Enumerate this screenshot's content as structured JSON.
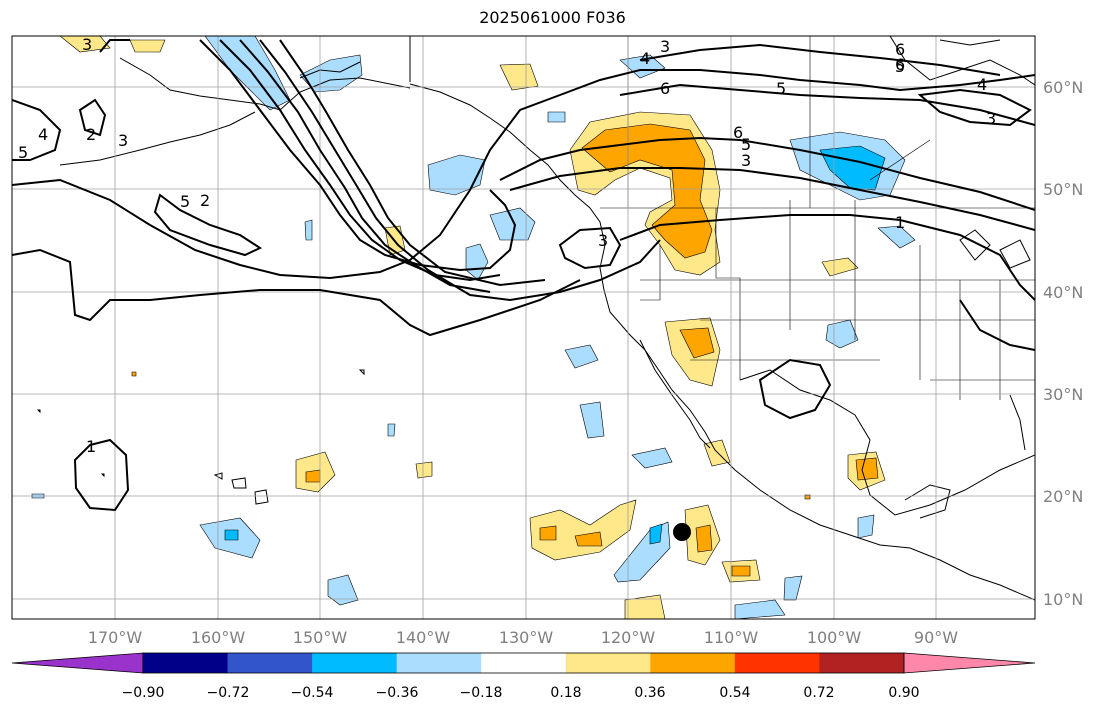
{
  "title": "2025061000 F036",
  "lon_labels": [
    "170°W",
    "160°W",
    "150°W",
    "140°W",
    "130°W",
    "120°W",
    "110°W",
    "100°W",
    "90°W"
  ],
  "lat_labels": [
    "60°N",
    "50°N",
    "40°N",
    "30°N",
    "20°N",
    "10°N"
  ],
  "colorbar": {
    "colors": [
      "#9933cc",
      "#000088",
      "#3355cc",
      "#00bbff",
      "#aaddff",
      "#ffffff",
      "#ffe88a",
      "#ffa500",
      "#ff3300",
      "#b22222",
      "#ff88aa"
    ],
    "labels": [
      "−0.90",
      "−0.72",
      "−0.54",
      "−0.36",
      "−0.18",
      "0.18",
      "0.36",
      "0.54",
      "0.72",
      "0.90"
    ]
  },
  "contour_labels": [
    "3",
    "6",
    "4",
    "6",
    "5",
    "6",
    "5",
    "3",
    "6",
    "5",
    "3",
    "4",
    "3",
    "2",
    "4",
    "3",
    "5",
    "5",
    "2",
    "3",
    "1",
    "1"
  ],
  "colors": {
    "grid": "#a0a0a0",
    "coast": "#000000",
    "contour": "#000000",
    "marker": "#000000"
  }
}
